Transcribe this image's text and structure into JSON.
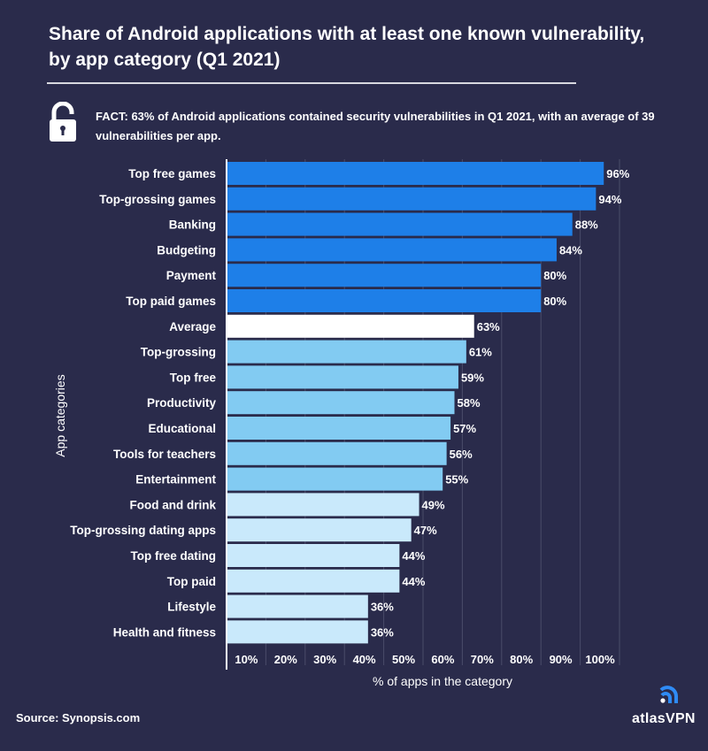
{
  "header": {
    "title_line1": "Share of Android applications with at least one known vulnerability,",
    "title_line2": "by app category  (Q1 2021)",
    "fact": "FACT: 63% of Android applications contained security vulnerabilities in Q1 2021, with an average of 39 vulnerabilities per app.",
    "fact_icon": "unlocked-padlock-icon"
  },
  "footer": {
    "source": "Source: Synopsis.com",
    "brand": "atlasVPN",
    "brand_icon": "atlasvpn-signal-logo-icon"
  },
  "colors": {
    "background": "#2a2b4b",
    "dark_blue": "#1e7fe8",
    "white": "#ffffff",
    "mid_blue": "#82cbf2",
    "light_blue": "#c9e9fb",
    "grid": "#4a4c6a"
  },
  "chart_data": {
    "type": "bar",
    "orientation": "horizontal",
    "title": "Share of Android applications with at least one known vulnerability, by app category (Q1 2021)",
    "xlabel": "% of apps in the category",
    "ylabel": "App categories",
    "xlim": [
      0,
      100
    ],
    "xticks": [
      "10%",
      "20%",
      "30%",
      "40%",
      "50%",
      "60%",
      "70%",
      "80%",
      "90%",
      "100%"
    ],
    "grid": true,
    "categories": [
      "Top free games",
      "Top-grossing games",
      "Banking",
      "Budgeting",
      "Payment",
      "Top paid games",
      "Average",
      "Top-grossing",
      "Top free",
      "Productivity",
      "Educational",
      "Tools for teachers",
      "Entertainment",
      "Food and drink",
      "Top-grossing dating apps",
      "Top free dating",
      "Top paid",
      "Lifestyle",
      "Health and fitness"
    ],
    "values": [
      96,
      94,
      88,
      84,
      80,
      80,
      63,
      61,
      59,
      58,
      57,
      56,
      55,
      49,
      47,
      44,
      44,
      36,
      36
    ],
    "labels": [
      "96%",
      "94%",
      "88%",
      "84%",
      "80%",
      "80%",
      "63%",
      "61%",
      "59%",
      "58%",
      "57%",
      "56%",
      "55%",
      "49%",
      "47%",
      "44%",
      "44%",
      "36%",
      "36%"
    ],
    "color_groups": [
      "dark_blue",
      "dark_blue",
      "dark_blue",
      "dark_blue",
      "dark_blue",
      "dark_blue",
      "white",
      "mid_blue",
      "mid_blue",
      "mid_blue",
      "mid_blue",
      "mid_blue",
      "mid_blue",
      "light_blue",
      "light_blue",
      "light_blue",
      "light_blue",
      "light_blue",
      "light_blue"
    ]
  }
}
